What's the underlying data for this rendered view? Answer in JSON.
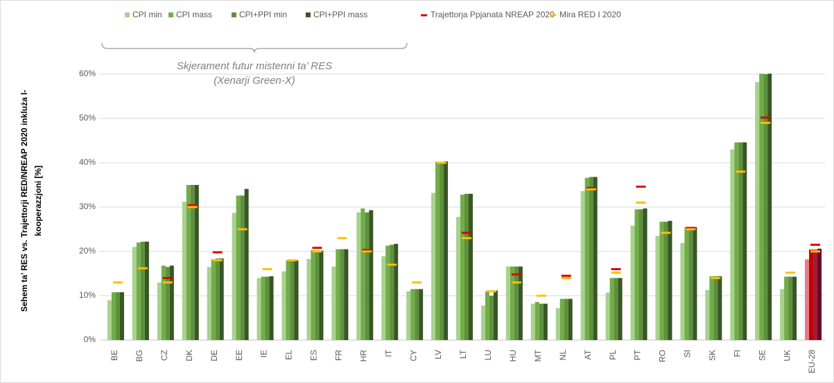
{
  "chart_data": {
    "type": "bar",
    "y_label": [
      "Sehem ta’ RES vs. Trajettorji RED/NREAP 2020 inkluża l-",
      "kooperazzjoni [%]"
    ],
    "annotation": [
      "Skjerament futur mistenni ta’ RES",
      "(Xenarji Green-X)"
    ],
    "categories": [
      "BE",
      "BG",
      "CZ",
      "DK",
      "DE",
      "EE",
      "IE",
      "EL",
      "ES",
      "FR",
      "HR",
      "IT",
      "CY",
      "LV",
      "LT",
      "LU",
      "HU",
      "MT",
      "NL",
      "AT",
      "PL",
      "PT",
      "RO",
      "SI",
      "SK",
      "FI",
      "SE",
      "UK",
      "EU-28"
    ],
    "series": [
      {
        "name": "CPI min",
        "color": "#a9d18e",
        "highlight_color": "#e57a90",
        "values": [
          9,
          21,
          13,
          31.2,
          16.5,
          28.7,
          14,
          15.5,
          18.3,
          16.6,
          28.8,
          18.9,
          11,
          33.2,
          27.8,
          7.8,
          16.6,
          8.2,
          7.2,
          33.6,
          10.7,
          25.8,
          23.5,
          21.9,
          11.3,
          43,
          58.2,
          11.5,
          18.2
        ]
      },
      {
        "name": "CPI mass",
        "color": "#70ad47",
        "highlight_color": "#c00000",
        "values": [
          10.8,
          22,
          16.8,
          35,
          18.2,
          32.6,
          14.3,
          18,
          20.3,
          20.5,
          29.7,
          21.3,
          11.5,
          40.2,
          32.8,
          11,
          16.6,
          8.6,
          9.3,
          36.6,
          14,
          29.5,
          26.7,
          25.5,
          14.4,
          44.6,
          60.1,
          14.3,
          20.4
        ]
      },
      {
        "name": "CPI+PPI min",
        "color": "#5e8f3e",
        "highlight_color": "#9e1c3c",
        "values": [
          10.8,
          22.2,
          16.5,
          35,
          18.4,
          32.6,
          14.3,
          17.8,
          20.2,
          20.5,
          28.8,
          21.5,
          11.5,
          40.2,
          33,
          10,
          16.6,
          8.2,
          9.3,
          36.8,
          14,
          29.5,
          26.7,
          25.5,
          14.4,
          44.6,
          60,
          14.3,
          20.4
        ]
      },
      {
        "name": "CPI+PPI mass",
        "color": "#385723",
        "highlight_color": "#6b0a25",
        "values": [
          10.8,
          22.2,
          16.8,
          35,
          18.4,
          34.1,
          14.4,
          18,
          20.2,
          20.5,
          29.3,
          21.7,
          11.5,
          40.3,
          33,
          11.2,
          16.6,
          8.2,
          9.3,
          36.8,
          14,
          29.7,
          26.9,
          25.5,
          14.4,
          44.6,
          60.1,
          14.3,
          20.6
        ]
      }
    ],
    "markers": [
      {
        "name": "Trajettorja Ppjanata NREAP 2020",
        "color": "#e00000",
        "values": [
          null,
          null,
          14,
          30.4,
          19.8,
          null,
          null,
          null,
          20.8,
          null,
          20.3,
          null,
          null,
          null,
          24.2,
          null,
          14.8,
          null,
          14.5,
          34.3,
          16,
          34.6,
          null,
          25.3,
          null,
          null,
          50.2,
          null,
          21.5
        ]
      },
      {
        "name": "Mira RED I 2020",
        "color": "#ffc000",
        "values": [
          13,
          16.2,
          13,
          30,
          18,
          25,
          16,
          18,
          20,
          23,
          20,
          17,
          13,
          40,
          23,
          11,
          13,
          10,
          14,
          34,
          15.2,
          31,
          24.2,
          25,
          14,
          38,
          49,
          15.2,
          20
        ]
      }
    ],
    "ylim": [
      0,
      60
    ],
    "yticks": [
      {
        "value": 0,
        "label": "0%"
      },
      {
        "value": 10,
        "label": "10%"
      },
      {
        "value": 20,
        "label": "20%"
      },
      {
        "value": 30,
        "label": "30%"
      },
      {
        "value": 40,
        "label": "40%"
      },
      {
        "value": 50,
        "label": "50%"
      },
      {
        "value": 60,
        "label": "60%"
      }
    ],
    "grid": true
  }
}
